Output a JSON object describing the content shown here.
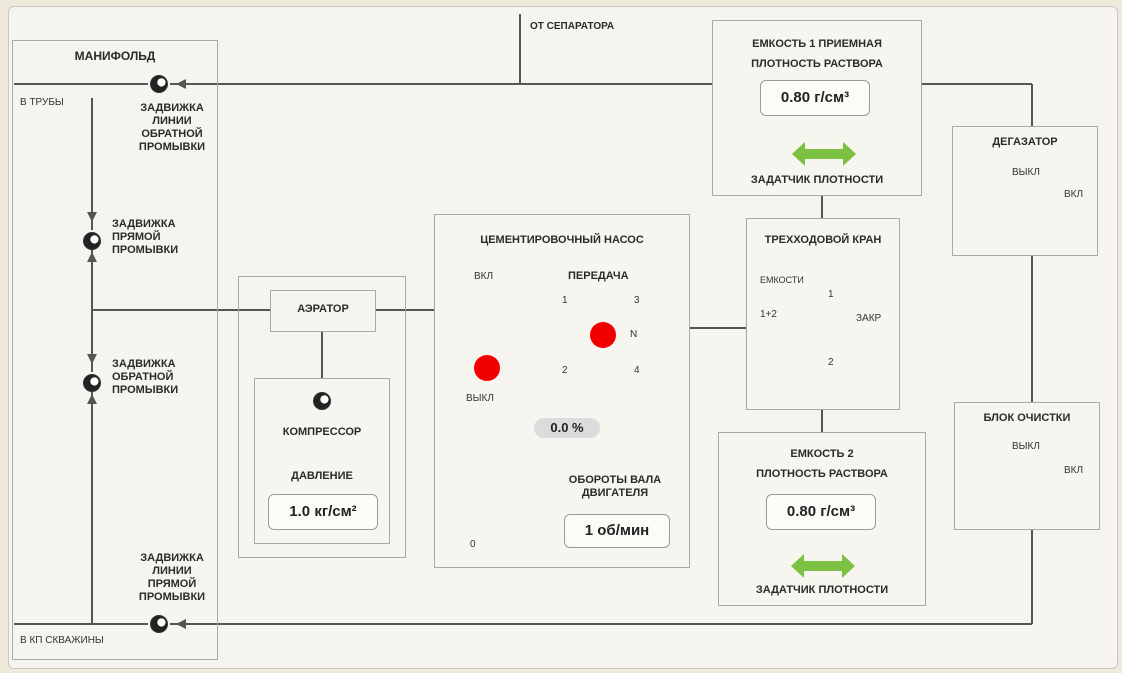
{
  "from_separator": "ОТ СЕПАРАТОРА",
  "manifold": {
    "title": "МАНИФОЛЬД",
    "to_pipes": "В ТРУБЫ",
    "to_well": "В КП СКВАЖИНЫ",
    "valve_backwash_line": "ЗАДВИЖКА\nЛИНИИ\nОБРАТНОЙ\nПРОМЫВКИ",
    "valve_direct_wash": "ЗАДВИЖКА\nПРЯМОЙ\nПРОМЫВКИ",
    "valve_backwash": "ЗАДВИЖКА\nОБРАТНОЙ\nПРОМЫВКИ",
    "valve_direct_wash_line": "ЗАДВИЖКА\nЛИНИИ\nПРЯМОЙ\nПРОМЫВКИ"
  },
  "aerator": {
    "title": "АЭРАТОР",
    "compressor": "КОМПРЕССОР",
    "pressure_label": "ДАВЛЕНИЕ",
    "pressure_value": "1.0 кг/см²"
  },
  "pump": {
    "title": "ЦЕМЕНТИРОВОЧНЫЙ НАСОС",
    "on": "ВКЛ",
    "off": "ВЫКЛ",
    "gear_label": "ПЕРЕДАЧА",
    "gears": [
      "1",
      "2",
      "3",
      "N",
      "4"
    ],
    "throttle_percent": "0.0 %",
    "throttle_zero": "0",
    "rpm_label": "ОБОРОТЫ ВАЛА\nДВИГАТЕЛЯ",
    "rpm_value": "1 об/мин"
  },
  "tank1": {
    "title": "ЕМКОСТЬ 1 ПРИЕМНАЯ\nПЛОТНОСТЬ РАСТВОРА",
    "density_value": "0.80 г/см³",
    "setter_label": "ЗАДАТЧИК ПЛОТНОСТИ"
  },
  "tank2": {
    "title": "ЕМКОСТЬ 2\nПЛОТНОСТЬ РАСТВОРА",
    "density_value": "0.80 г/см³",
    "setter_label": "ЗАДАТЧИК ПЛОТНОСТИ"
  },
  "three_way_valve": {
    "title": "ТРЕХХОДОВОЙ КРАН",
    "tanks_label": "ЕМКОСТИ",
    "pos_1_2": "1+2",
    "pos_1": "1",
    "pos_2": "2",
    "closed": "ЗАКР"
  },
  "degasser": {
    "title": "ДЕГАЗАТОР",
    "off": "ВЫКЛ",
    "on": "ВКЛ"
  },
  "cleaning": {
    "title": "БЛОК ОЧИСТКИ",
    "off": "ВЫКЛ",
    "on": "ВКЛ"
  },
  "colors": {
    "marker": "#f20000",
    "arrow": "#7cc142"
  }
}
